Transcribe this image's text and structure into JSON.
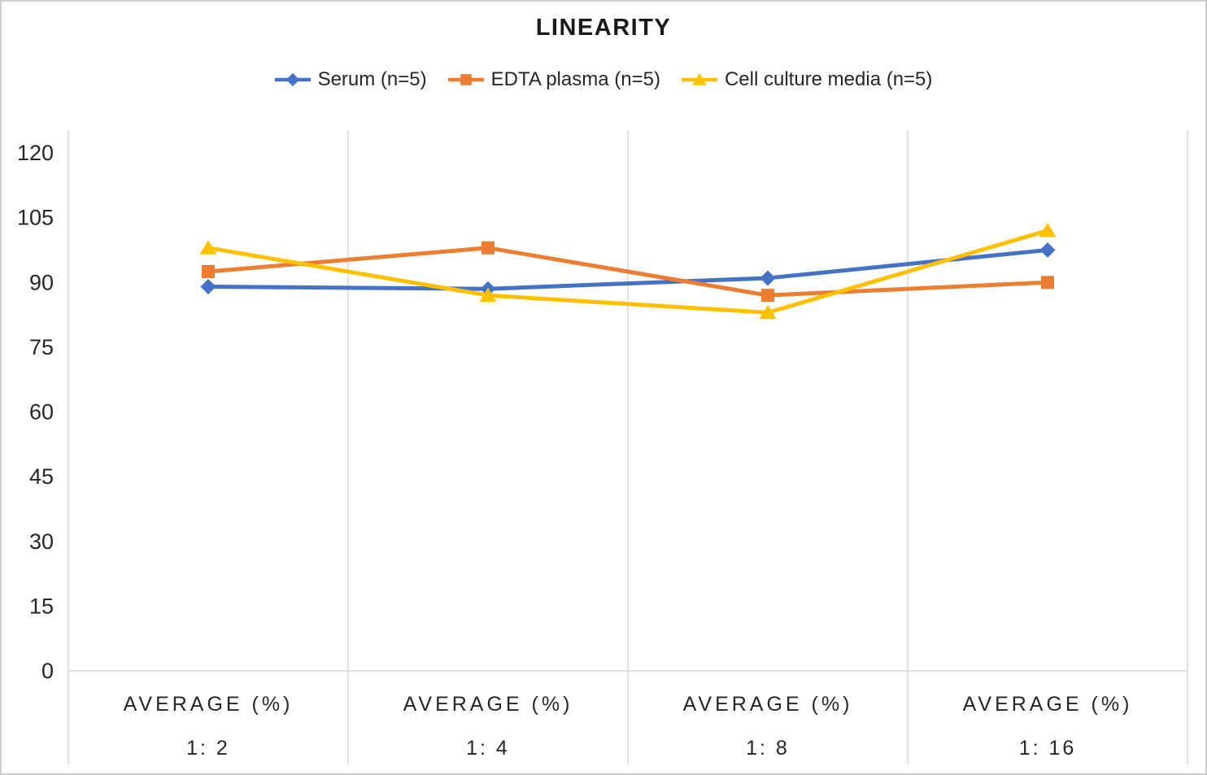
{
  "frame": {
    "background": "#ffffff",
    "border_color": "#cfcfcf"
  },
  "chart_data": {
    "type": "line",
    "title": "LINEARITY",
    "legend_position": "top",
    "grid": "vertical-major-only",
    "horizontal_gridlines": false,
    "category_group_label": "AVERAGE (%)",
    "categories": [
      "1:  2",
      "1:  4",
      "1:  8",
      "1:  16"
    ],
    "series": [
      {
        "name": "Serum (n=5)",
        "marker": "diamond",
        "color": "#4472C4",
        "values": [
          89,
          88.5,
          91,
          97.5
        ]
      },
      {
        "name": "EDTA plasma (n=5)",
        "marker": "square",
        "color": "#ED7D31",
        "values": [
          92.5,
          98,
          87,
          90
        ]
      },
      {
        "name": "Cell culture media (n=5)",
        "marker": "triangle",
        "color": "#FFC000",
        "values": [
          98,
          87,
          83,
          102
        ]
      }
    ],
    "ylim": [
      0,
      120
    ],
    "yticks": [
      0,
      15,
      30,
      45,
      60,
      75,
      90,
      105,
      120
    ],
    "axis_color": "#D9D9D9",
    "text_color": "#262626"
  }
}
